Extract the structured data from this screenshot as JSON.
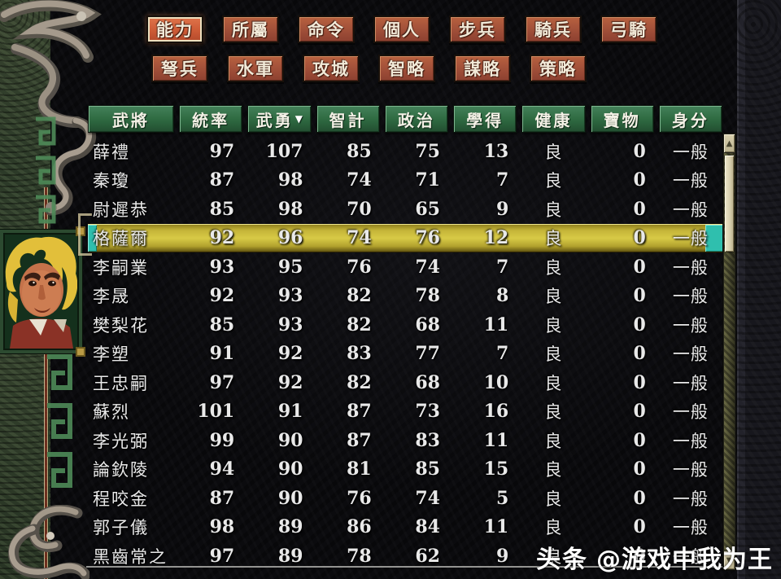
{
  "toolbar": {
    "row1": [
      {
        "id": "ability",
        "label": "能力",
        "active": true
      },
      {
        "id": "affiliation",
        "label": "所屬",
        "active": false
      },
      {
        "id": "orders",
        "label": "命令",
        "active": false
      },
      {
        "id": "personal",
        "label": "個人",
        "active": false
      },
      {
        "id": "infantry",
        "label": "步兵",
        "active": false
      },
      {
        "id": "cavalry",
        "label": "騎兵",
        "active": false
      },
      {
        "id": "horse-archer",
        "label": "弓騎",
        "active": false
      }
    ],
    "row2": [
      {
        "id": "crossbow",
        "label": "弩兵",
        "active": false
      },
      {
        "id": "navy",
        "label": "水軍",
        "active": false
      },
      {
        "id": "siege",
        "label": "攻城",
        "active": false
      },
      {
        "id": "wisdom",
        "label": "智略",
        "active": false
      },
      {
        "id": "tactics",
        "label": "謀略",
        "active": false
      },
      {
        "id": "strategy",
        "label": "策略",
        "active": false
      }
    ]
  },
  "table": {
    "columns": [
      {
        "id": "commander",
        "label": "武將"
      },
      {
        "id": "leadership",
        "label": "統率"
      },
      {
        "id": "valor",
        "label": "武勇"
      },
      {
        "id": "intellect",
        "label": "智計"
      },
      {
        "id": "politics",
        "label": "政治"
      },
      {
        "id": "learned",
        "label": "學得"
      },
      {
        "id": "health",
        "label": "健康"
      },
      {
        "id": "treasure",
        "label": "寶物"
      },
      {
        "id": "status",
        "label": "身分"
      }
    ],
    "sort": {
      "column_index": 2,
      "indicator": "▼"
    },
    "rows": [
      {
        "name": "薛禮",
        "leadership": 97,
        "valor": 107,
        "intellect": 85,
        "politics": 75,
        "learned": 13,
        "health": "良",
        "treasure": 0,
        "status": "一般",
        "selected": false
      },
      {
        "name": "秦瓊",
        "leadership": 87,
        "valor": 98,
        "intellect": 74,
        "politics": 71,
        "learned": 7,
        "health": "良",
        "treasure": 0,
        "status": "一般",
        "selected": false
      },
      {
        "name": "尉遲恭",
        "leadership": 85,
        "valor": 98,
        "intellect": 70,
        "politics": 65,
        "learned": 9,
        "health": "良",
        "treasure": 0,
        "status": "一般",
        "selected": false
      },
      {
        "name": "格薩爾",
        "leadership": 92,
        "valor": 96,
        "intellect": 74,
        "politics": 76,
        "learned": 12,
        "health": "良",
        "treasure": 0,
        "status": "一般",
        "selected": true
      },
      {
        "name": "李嗣業",
        "leadership": 93,
        "valor": 95,
        "intellect": 76,
        "politics": 74,
        "learned": 7,
        "health": "良",
        "treasure": 0,
        "status": "一般",
        "selected": false
      },
      {
        "name": "李晟",
        "leadership": 92,
        "valor": 93,
        "intellect": 82,
        "politics": 78,
        "learned": 8,
        "health": "良",
        "treasure": 0,
        "status": "一般",
        "selected": false
      },
      {
        "name": "樊梨花",
        "leadership": 85,
        "valor": 93,
        "intellect": 82,
        "politics": 68,
        "learned": 11,
        "health": "良",
        "treasure": 0,
        "status": "一般",
        "selected": false
      },
      {
        "name": "李塑",
        "leadership": 91,
        "valor": 92,
        "intellect": 83,
        "politics": 77,
        "learned": 7,
        "health": "良",
        "treasure": 0,
        "status": "一般",
        "selected": false
      },
      {
        "name": "王忠嗣",
        "leadership": 97,
        "valor": 92,
        "intellect": 82,
        "politics": 68,
        "learned": 10,
        "health": "良",
        "treasure": 0,
        "status": "一般",
        "selected": false
      },
      {
        "name": "蘇烈",
        "leadership": 101,
        "valor": 91,
        "intellect": 87,
        "politics": 73,
        "learned": 16,
        "health": "良",
        "treasure": 0,
        "status": "一般",
        "selected": false
      },
      {
        "name": "李光弼",
        "leadership": 99,
        "valor": 90,
        "intellect": 87,
        "politics": 83,
        "learned": 11,
        "health": "良",
        "treasure": 0,
        "status": "一般",
        "selected": false
      },
      {
        "name": "論欽陵",
        "leadership": 94,
        "valor": 90,
        "intellect": 81,
        "politics": 85,
        "learned": 15,
        "health": "良",
        "treasure": 0,
        "status": "一般",
        "selected": false
      },
      {
        "name": "程咬金",
        "leadership": 87,
        "valor": 90,
        "intellect": 76,
        "politics": 74,
        "learned": 5,
        "health": "良",
        "treasure": 0,
        "status": "一般",
        "selected": false
      },
      {
        "name": "郭子儀",
        "leadership": 98,
        "valor": 89,
        "intellect": 86,
        "politics": 84,
        "learned": 11,
        "health": "良",
        "treasure": 0,
        "status": "一般",
        "selected": false
      },
      {
        "name": "黑齒常之",
        "leadership": 97,
        "valor": 89,
        "intellect": 78,
        "politics": 62,
        "learned": 9,
        "health": "良",
        "treasure": 0,
        "status": "一般",
        "selected": false
      }
    ]
  },
  "scrollbar": {
    "up_icon": "▲",
    "down_icon": "▼"
  },
  "watermark": {
    "badge": "头条",
    "handle": "@游戏中我为王"
  },
  "colors": {
    "highlight_row": "#d8ca46",
    "selection_caps": "#2fbfae",
    "header_green": "#2f6b42",
    "button_rust": "#a4523a",
    "button_active": "#cd5b36"
  }
}
